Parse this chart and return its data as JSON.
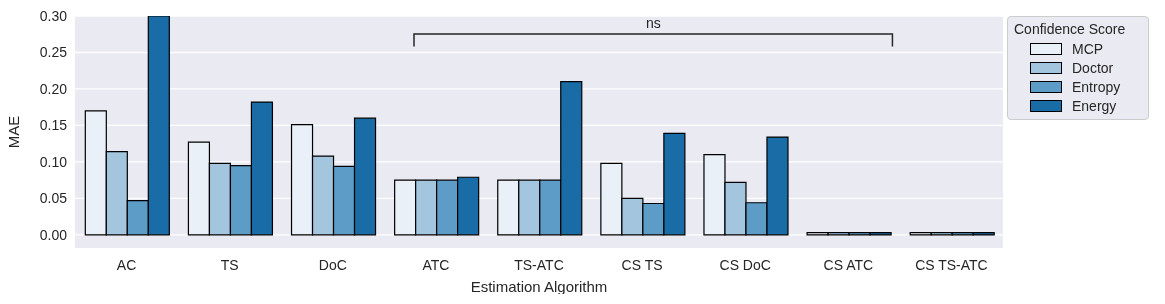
{
  "chart_data": {
    "type": "bar",
    "xlabel": "Estimation Algorithm",
    "ylabel": "MAE",
    "legend_title": "Confidence Score",
    "categories": [
      "AC",
      "TS",
      "DoC",
      "ATC",
      "TS-ATC",
      "CS TS",
      "CS DoC",
      "CS ATC",
      "CS TS-ATC"
    ],
    "series": [
      {
        "name": "MCP",
        "color": "#eaf0f8",
        "values": [
          0.17,
          0.127,
          0.151,
          0.075,
          0.075,
          0.098,
          0.11,
          0.003,
          0.003
        ]
      },
      {
        "name": "Doctor",
        "color": "#a3c5dd",
        "values": [
          0.114,
          0.098,
          0.108,
          0.075,
          0.075,
          0.05,
          0.072,
          0.003,
          0.003
        ]
      },
      {
        "name": "Entropy",
        "color": "#5d9cc7",
        "values": [
          0.047,
          0.095,
          0.094,
          0.075,
          0.075,
          0.043,
          0.044,
          0.003,
          0.003
        ]
      },
      {
        "name": "Energy",
        "color": "#1a6ca7",
        "values": [
          0.3,
          0.182,
          0.16,
          0.079,
          0.21,
          0.139,
          0.134,
          0.003,
          0.003
        ]
      }
    ],
    "ylim": [
      -0.018,
      0.3
    ],
    "yticks": [
      {
        "value": 0,
        "label": "0.00"
      },
      {
        "value": 0.05,
        "label": "0.05"
      },
      {
        "value": 0.1,
        "label": "0.10"
      },
      {
        "value": 0.15,
        "label": "0.15"
      },
      {
        "value": 0.2,
        "label": "0.20"
      },
      {
        "value": 0.25,
        "label": "0.25"
      },
      {
        "value": 0.3,
        "label": "0.30"
      }
    ],
    "grid": "y",
    "legend": "top right",
    "annotations": [
      "ns"
    ]
  }
}
